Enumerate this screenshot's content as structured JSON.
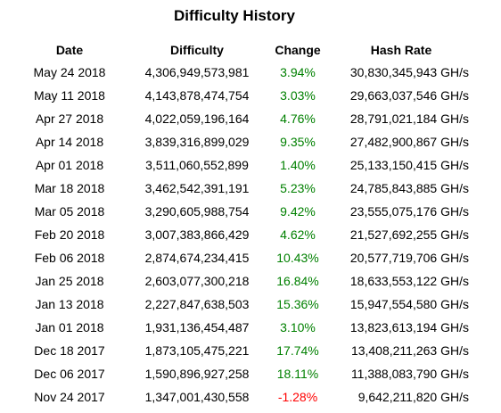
{
  "title": "Difficulty History",
  "headers": {
    "date": "Date",
    "difficulty": "Difficulty",
    "change": "Change",
    "hash_rate": "Hash Rate"
  },
  "colors": {
    "positive": "#008000",
    "negative": "#ff0000"
  },
  "rows": [
    {
      "date": "May 24 2018",
      "difficulty": "4,306,949,573,981",
      "change": "3.94%",
      "hash_rate": "30,830,345,943 GH/s",
      "trend": "positive"
    },
    {
      "date": "May 11 2018",
      "difficulty": "4,143,878,474,754",
      "change": "3.03%",
      "hash_rate": "29,663,037,546 GH/s",
      "trend": "positive"
    },
    {
      "date": "Apr 27 2018",
      "difficulty": "4,022,059,196,164",
      "change": "4.76%",
      "hash_rate": "28,791,021,184 GH/s",
      "trend": "positive"
    },
    {
      "date": "Apr 14 2018",
      "difficulty": "3,839,316,899,029",
      "change": "9.35%",
      "hash_rate": "27,482,900,867 GH/s",
      "trend": "positive"
    },
    {
      "date": "Apr 01 2018",
      "difficulty": "3,511,060,552,899",
      "change": "1.40%",
      "hash_rate": "25,133,150,415 GH/s",
      "trend": "positive"
    },
    {
      "date": "Mar 18 2018",
      "difficulty": "3,462,542,391,191",
      "change": "5.23%",
      "hash_rate": "24,785,843,885 GH/s",
      "trend": "positive"
    },
    {
      "date": "Mar 05 2018",
      "difficulty": "3,290,605,988,754",
      "change": "9.42%",
      "hash_rate": "23,555,075,176 GH/s",
      "trend": "positive"
    },
    {
      "date": "Feb 20 2018",
      "difficulty": "3,007,383,866,429",
      "change": "4.62%",
      "hash_rate": "21,527,692,255 GH/s",
      "trend": "positive"
    },
    {
      "date": "Feb 06 2018",
      "difficulty": "2,874,674,234,415",
      "change": "10.43%",
      "hash_rate": "20,577,719,706 GH/s",
      "trend": "positive"
    },
    {
      "date": "Jan 25 2018",
      "difficulty": "2,603,077,300,218",
      "change": "16.84%",
      "hash_rate": "18,633,553,122 GH/s",
      "trend": "positive"
    },
    {
      "date": "Jan 13 2018",
      "difficulty": "2,227,847,638,503",
      "change": "15.36%",
      "hash_rate": "15,947,554,580 GH/s",
      "trend": "positive"
    },
    {
      "date": "Jan 01 2018",
      "difficulty": "1,931,136,454,487",
      "change": "3.10%",
      "hash_rate": "13,823,613,194 GH/s",
      "trend": "positive"
    },
    {
      "date": "Dec 18 2017",
      "difficulty": "1,873,105,475,221",
      "change": "17.74%",
      "hash_rate": "13,408,211,263 GH/s",
      "trend": "positive"
    },
    {
      "date": "Dec 06 2017",
      "difficulty": "1,590,896,927,258",
      "change": "18.11%",
      "hash_rate": "11,388,083,790 GH/s",
      "trend": "positive"
    },
    {
      "date": "Nov 24 2017",
      "difficulty": "1,347,001,430,558",
      "change": "-1.28%",
      "hash_rate": "9,642,211,820 GH/s",
      "trend": "negative"
    }
  ]
}
